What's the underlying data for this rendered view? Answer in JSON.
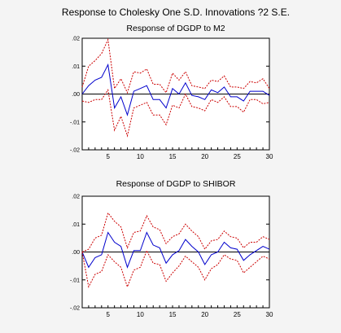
{
  "figure_title": "Response to Cholesky One S.D. Innovations ?2 S.E.",
  "chart_data": [
    {
      "type": "line",
      "title": "Response of DGDP to M2",
      "xlabel": "",
      "ylabel": "",
      "xlim": [
        1,
        30
      ],
      "ylim": [
        -0.02,
        0.02
      ],
      "xticks": [
        5,
        10,
        15,
        20,
        25,
        30
      ],
      "yticks": [
        -0.02,
        -0.01,
        0.0,
        0.01,
        0.02
      ],
      "ytick_labels": [
        "-.02",
        "-.01",
        ".00",
        ".01",
        ".02"
      ],
      "zero_line": true,
      "x": [
        1,
        2,
        3,
        4,
        5,
        6,
        7,
        8,
        9,
        10,
        11,
        12,
        13,
        14,
        15,
        16,
        17,
        18,
        19,
        20,
        21,
        22,
        23,
        24,
        25,
        26,
        27,
        28,
        29,
        30
      ],
      "series": [
        {
          "role": "response",
          "color": "#0000cc",
          "style": "solid",
          "values": [
            0.0,
            0.003,
            0.005,
            0.006,
            0.0105,
            -0.005,
            -0.001,
            -0.0075,
            0.001,
            0.002,
            0.003,
            -0.002,
            -0.002,
            -0.005,
            0.002,
            0.0,
            0.004,
            -0.0005,
            -0.001,
            -0.002,
            0.0015,
            0.0005,
            0.0025,
            -0.001,
            -0.001,
            -0.0025,
            0.001,
            0.001,
            0.001,
            -0.0005
          ]
        },
        {
          "role": "upper",
          "color": "#cc0000",
          "style": "dashed",
          "values": [
            0.0025,
            0.01,
            0.012,
            0.0145,
            0.0195,
            0.002,
            0.0055,
            0.0005,
            0.008,
            0.0075,
            0.009,
            0.0035,
            0.0035,
            0.0005,
            0.0075,
            0.005,
            0.008,
            0.003,
            0.0025,
            0.002,
            0.005,
            0.0045,
            0.0065,
            0.0025,
            0.0025,
            0.002,
            0.0045,
            0.004,
            0.0055,
            0.002
          ]
        },
        {
          "role": "lower",
          "color": "#cc0000",
          "style": "dashed",
          "values": [
            -0.0025,
            -0.003,
            -0.002,
            -0.002,
            0.0015,
            -0.013,
            -0.008,
            -0.015,
            -0.005,
            -0.004,
            -0.003,
            -0.0075,
            -0.0075,
            -0.011,
            -0.004,
            -0.005,
            0.0,
            -0.0045,
            -0.005,
            -0.006,
            -0.002,
            -0.003,
            -0.001,
            -0.0045,
            -0.0045,
            -0.0065,
            -0.002,
            -0.002,
            -0.0035,
            -0.003
          ]
        }
      ]
    },
    {
      "type": "line",
      "title": "Response of DGDP to SHIBOR",
      "xlabel": "",
      "ylabel": "",
      "xlim": [
        1,
        30
      ],
      "ylim": [
        -0.02,
        0.02
      ],
      "xticks": [
        5,
        10,
        15,
        20,
        25,
        30
      ],
      "yticks": [
        -0.02,
        -0.01,
        0.0,
        0.01,
        0.02
      ],
      "ytick_labels": [
        "-.02",
        "-.01",
        ".00",
        ".01",
        ".02"
      ],
      "zero_line": true,
      "x": [
        1,
        2,
        3,
        4,
        5,
        6,
        7,
        8,
        9,
        10,
        11,
        12,
        13,
        14,
        15,
        16,
        17,
        18,
        19,
        20,
        21,
        22,
        23,
        24,
        25,
        26,
        27,
        28,
        29,
        30
      ],
      "series": [
        {
          "role": "response",
          "color": "#0000cc",
          "style": "solid",
          "values": [
            0.0,
            -0.0055,
            -0.002,
            -0.001,
            0.007,
            0.0035,
            0.002,
            -0.0055,
            0.0005,
            0.0005,
            0.007,
            0.0025,
            0.0015,
            -0.004,
            -0.001,
            0.0005,
            0.0045,
            0.002,
            0.0,
            -0.0045,
            -0.001,
            0.0,
            0.0035,
            0.0015,
            0.001,
            -0.003,
            -0.001,
            0.0005,
            0.002,
            0.001
          ]
        },
        {
          "role": "upper",
          "color": "#cc0000",
          "style": "dashed",
          "values": [
            0.0,
            0.001,
            0.005,
            0.006,
            0.014,
            0.011,
            0.009,
            0.0015,
            0.007,
            0.0075,
            0.013,
            0.009,
            0.008,
            0.003,
            0.0055,
            0.0065,
            0.01,
            0.0075,
            0.0055,
            0.001,
            0.004,
            0.0045,
            0.0075,
            0.0055,
            0.005,
            0.0015,
            0.0035,
            0.0035,
            0.0055,
            0.0045
          ]
        },
        {
          "role": "lower",
          "color": "#cc0000",
          "style": "dashed",
          "values": [
            0.0,
            -0.0125,
            -0.008,
            -0.007,
            -0.001,
            -0.0035,
            -0.0055,
            -0.0125,
            -0.0065,
            -0.0055,
            0.0005,
            -0.004,
            -0.0045,
            -0.0105,
            -0.0075,
            -0.005,
            -0.0015,
            -0.0035,
            -0.0055,
            -0.01,
            -0.006,
            -0.0045,
            -0.001,
            -0.0025,
            -0.003,
            -0.0075,
            -0.0055,
            -0.0035,
            -0.0015,
            -0.0025
          ]
        }
      ]
    }
  ]
}
